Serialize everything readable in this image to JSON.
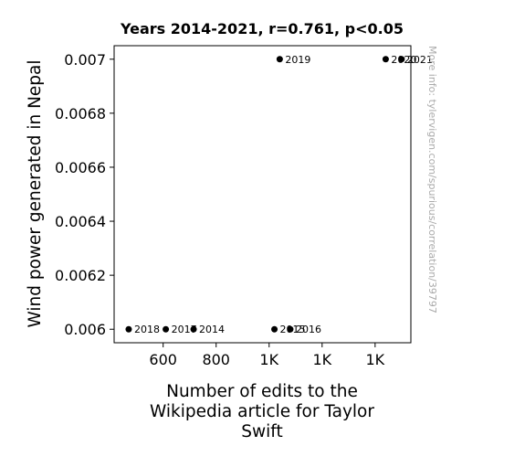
{
  "chart_data": {
    "type": "scatter",
    "title": "Years 2014-2021, r=0.761, p<0.05",
    "xlabel": [
      "Number of edits to the",
      "Wikipedia article for Taylor",
      "Swift"
    ],
    "ylabel": "Wind power generated in Nepal",
    "xlim": [
      415,
      1535
    ],
    "ylim": [
      0.00595,
      0.00705
    ],
    "x_ticks": [
      {
        "value": 600,
        "label": "600"
      },
      {
        "value": 800,
        "label": "800"
      },
      {
        "value": 1000,
        "label": "1K"
      },
      {
        "value": 1200,
        "label": "1K"
      },
      {
        "value": 1400,
        "label": "1K"
      }
    ],
    "y_ticks": [
      {
        "value": 0.006,
        "label": "0.006"
      },
      {
        "value": 0.0062,
        "label": "0.0062"
      },
      {
        "value": 0.0064,
        "label": "0.0064"
      },
      {
        "value": 0.0066,
        "label": "0.0066"
      },
      {
        "value": 0.0068,
        "label": "0.0068"
      },
      {
        "value": 0.007,
        "label": "0.007"
      }
    ],
    "points": [
      {
        "label": "2014",
        "x": 715,
        "y": 0.006
      },
      {
        "label": "2015",
        "x": 1020,
        "y": 0.006
      },
      {
        "label": "2016",
        "x": 1080,
        "y": 0.006
      },
      {
        "label": "2017",
        "x": 610,
        "y": 0.006
      },
      {
        "label": "2018",
        "x": 470,
        "y": 0.006
      },
      {
        "label": "2019",
        "x": 1040,
        "y": 0.007
      },
      {
        "label": "2020",
        "x": 1440,
        "y": 0.007
      },
      {
        "label": "2021",
        "x": 1500,
        "y": 0.007
      }
    ],
    "grid": false,
    "legend": "none"
  },
  "watermark": "More info: tylervigen.com/spurious/correlation/39797"
}
